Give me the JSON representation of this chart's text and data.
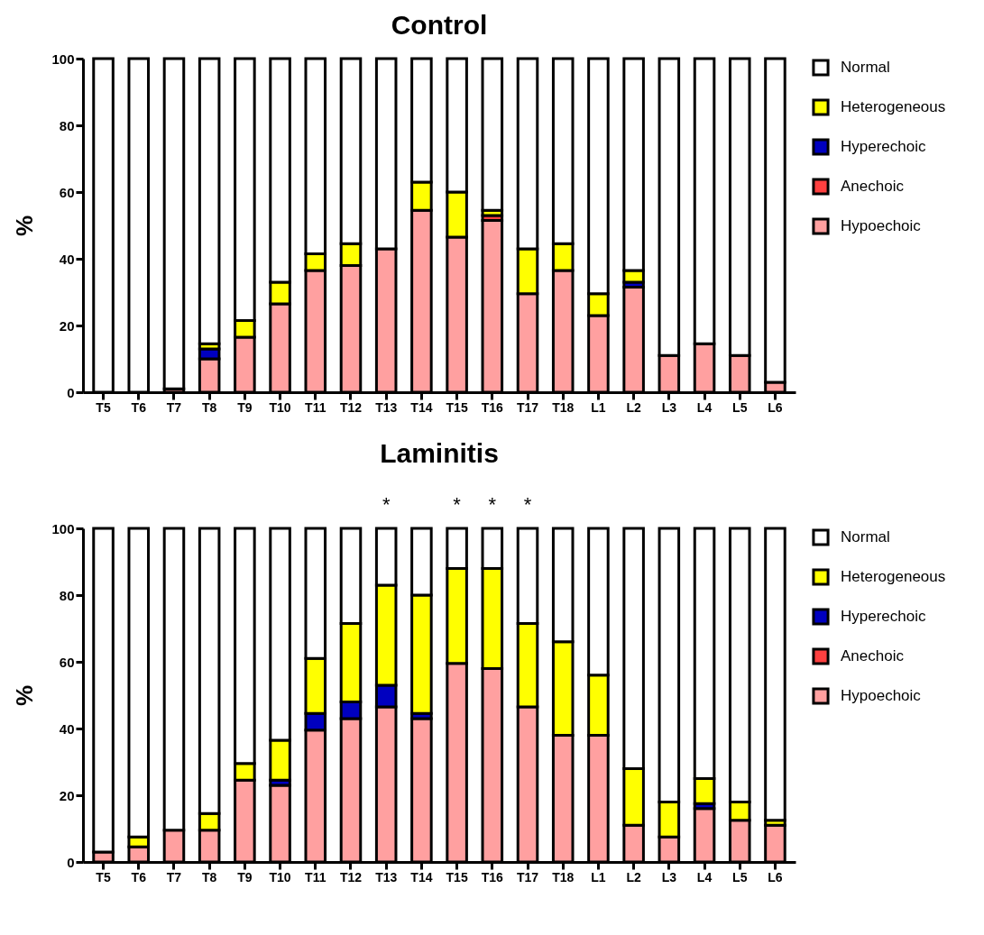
{
  "chart_data": [
    {
      "type": "bar",
      "title": "Control",
      "ylabel": "%",
      "stacked": true,
      "legend": "top right",
      "grid": false,
      "ylim": [
        0,
        100
      ],
      "yticks": [
        0,
        20,
        40,
        60,
        80,
        100
      ],
      "categories": [
        "T5",
        "T6",
        "T7",
        "T8",
        "T9",
        "T10",
        "T11",
        "T12",
        "T13",
        "T14",
        "T15",
        "T16",
        "T17",
        "T18",
        "L1",
        "L2",
        "L3",
        "L4",
        "L5",
        "L6"
      ],
      "series": [
        {
          "name": "Hypoechoic",
          "color": "#ffa0a0",
          "values": [
            0,
            0,
            1,
            10,
            16.5,
            26.5,
            36.5,
            38,
            43,
            54.5,
            46.5,
            51.5,
            29.5,
            36.5,
            23,
            31.5,
            11,
            14.5,
            11,
            3
          ]
        },
        {
          "name": "Anechoic",
          "color": "#ff4040",
          "values": [
            0,
            0,
            0,
            0,
            0,
            0,
            0,
            0,
            0,
            0,
            0,
            1.5,
            0,
            0,
            0,
            0,
            0,
            0,
            0,
            0
          ]
        },
        {
          "name": "Hyperechoic",
          "color": "#0000c0",
          "values": [
            0,
            0,
            0,
            3,
            0,
            0,
            0,
            0,
            0,
            0,
            0,
            0,
            0,
            0,
            0,
            1.5,
            0,
            0,
            0,
            0
          ]
        },
        {
          "name": "Heterogeneous",
          "color": "#ffff00",
          "values": [
            0,
            0,
            0,
            1.5,
            5,
            6.5,
            5,
            6.5,
            0,
            8.5,
            13.5,
            1.5,
            13.5,
            8,
            6.5,
            3.5,
            0,
            0,
            0,
            0
          ]
        },
        {
          "name": "Normal",
          "color": "#ffffff",
          "values": [
            100,
            100,
            99,
            85.5,
            78.5,
            67,
            58.5,
            55.5,
            57,
            37,
            40,
            45.5,
            57,
            55.5,
            70.5,
            63.5,
            89,
            85.5,
            89,
            97
          ]
        }
      ]
    },
    {
      "type": "bar",
      "title": "Laminitis",
      "ylabel": "%",
      "stacked": true,
      "legend": "top right",
      "grid": false,
      "ylim": [
        0,
        100
      ],
      "yticks": [
        0,
        20,
        40,
        60,
        80,
        100
      ],
      "categories": [
        "T5",
        "T6",
        "T7",
        "T8",
        "T9",
        "T10",
        "T11",
        "T12",
        "T13",
        "T14",
        "T15",
        "T16",
        "T17",
        "T18",
        "L1",
        "L2",
        "L3",
        "L4",
        "L5",
        "L6"
      ],
      "series": [
        {
          "name": "Hypoechoic",
          "color": "#ffa0a0",
          "values": [
            3,
            4.5,
            9.5,
            9.5,
            24.5,
            23,
            39.5,
            43,
            46.5,
            43,
            59.5,
            58,
            46.5,
            38,
            38,
            11,
            7.5,
            16,
            12.5,
            11
          ]
        },
        {
          "name": "Anechoic",
          "color": "#ff4040",
          "values": [
            0,
            0,
            0,
            0,
            0,
            0,
            0,
            0,
            0,
            0,
            0,
            0,
            0,
            0,
            0,
            0,
            0,
            0,
            0,
            0
          ]
        },
        {
          "name": "Hyperechoic",
          "color": "#0000c0",
          "values": [
            0,
            0,
            0,
            0,
            0,
            1.5,
            5,
            5,
            6.5,
            1.5,
            0,
            0,
            0,
            0,
            0,
            0,
            0,
            1.5,
            0,
            0
          ]
        },
        {
          "name": "Heterogeneous",
          "color": "#ffff00",
          "values": [
            0,
            3,
            0,
            5,
            5,
            12,
            16.5,
            23.5,
            30,
            35.5,
            28.5,
            30,
            25,
            28,
            18,
            17,
            10.5,
            7.5,
            5.5,
            1.5
          ]
        },
        {
          "name": "Normal",
          "color": "#ffffff",
          "values": [
            97,
            92.5,
            90.5,
            85.5,
            70.5,
            63.5,
            39,
            28.5,
            17,
            20,
            12,
            12,
            28.5,
            34,
            44,
            72,
            82,
            75,
            82,
            87.5
          ]
        }
      ],
      "annotations": [
        {
          "text": "*",
          "x": "T13",
          "y": 100
        },
        {
          "text": "*",
          "x": "T15",
          "y": 100
        },
        {
          "text": "*",
          "x": "T16",
          "y": 100
        },
        {
          "text": "*",
          "x": "T17",
          "y": 100
        }
      ]
    }
  ]
}
